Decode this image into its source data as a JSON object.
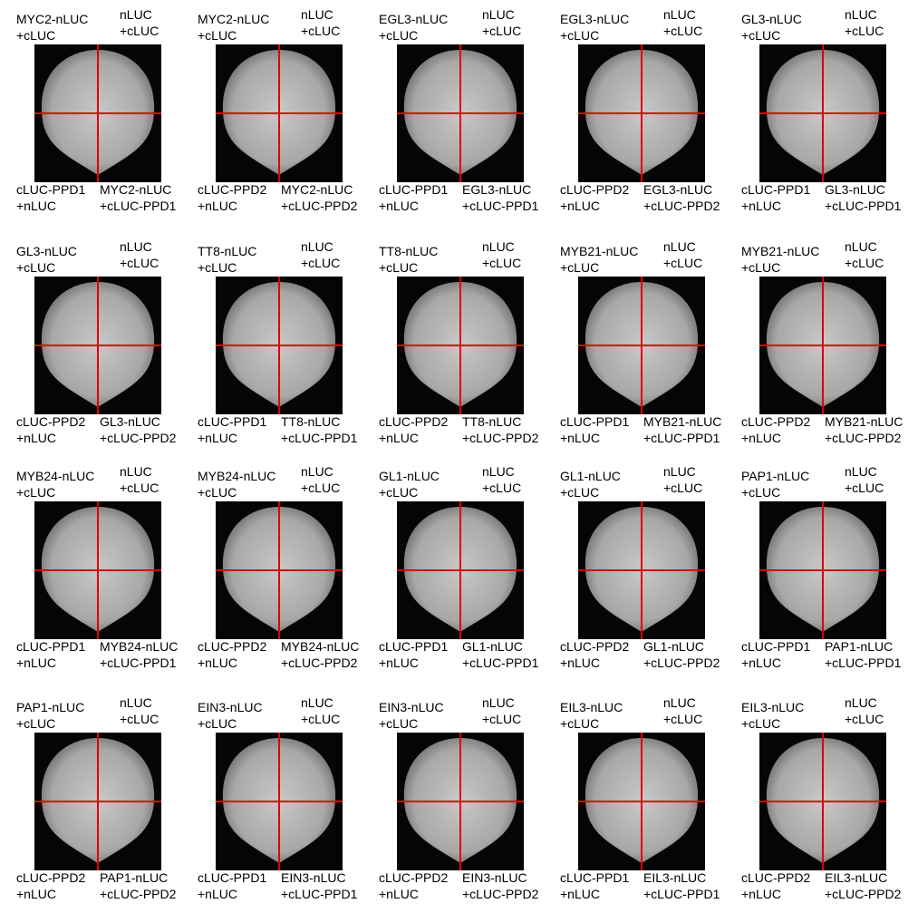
{
  "panels": [
    {
      "top_left": [
        "MYC2-nLUC",
        "+cLUC"
      ],
      "top_right": [
        "nLUC",
        "+cLUC"
      ],
      "bottom_left": [
        "cLUC-PPD1",
        "+nLUC"
      ],
      "bottom_right": [
        "MYC2-nLUC",
        "+cLUC-PPD1"
      ]
    },
    {
      "top_left": [
        "MYC2-nLUC",
        "+cLUC"
      ],
      "top_right": [
        "nLUC",
        "+cLUC"
      ],
      "bottom_left": [
        "cLUC-PPD2",
        "+nLUC"
      ],
      "bottom_right": [
        "MYC2-nLUC",
        "+cLUC-PPD2"
      ]
    },
    {
      "top_left": [
        "EGL3-nLUC",
        "+cLUC"
      ],
      "top_right": [
        "nLUC",
        "+cLUC"
      ],
      "bottom_left": [
        "cLUC-PPD1",
        "+nLUC"
      ],
      "bottom_right": [
        "EGL3-nLUC",
        "+cLUC-PPD1"
      ]
    },
    {
      "top_left": [
        "EGL3-nLUC",
        "+cLUC"
      ],
      "top_right": [
        "nLUC",
        "+cLUC"
      ],
      "bottom_left": [
        "cLUC-PPD2",
        "+nLUC"
      ],
      "bottom_right": [
        "EGL3-nLUC",
        "+cLUC-PPD2"
      ]
    },
    {
      "top_left": [
        "GL3-nLUC",
        "+cLUC"
      ],
      "top_right": [
        "nLUC",
        "+cLUC"
      ],
      "bottom_left": [
        "cLUC-PPD1",
        "+nLUC"
      ],
      "bottom_right": [
        "GL3-nLUC",
        "+cLUC-PPD1"
      ]
    },
    {
      "top_left": [
        "GL3-nLUC",
        "+cLUC"
      ],
      "top_right": [
        "nLUC",
        "+cLUC"
      ],
      "bottom_left": [
        "cLUC-PPD2",
        "+nLUC"
      ],
      "bottom_right": [
        "GL3-nLUC",
        "+cLUC-PPD2"
      ]
    },
    {
      "top_left": [
        "TT8-nLUC",
        "+cLUC"
      ],
      "top_right": [
        "nLUC",
        "+cLUC"
      ],
      "bottom_left": [
        "cLUC-PPD1",
        "+nLUC"
      ],
      "bottom_right": [
        "TT8-nLUC",
        "+cLUC-PPD1"
      ]
    },
    {
      "top_left": [
        "TT8-nLUC",
        "+cLUC"
      ],
      "top_right": [
        "nLUC",
        "+cLUC"
      ],
      "bottom_left": [
        "cLUC-PPD2",
        "+nLUC"
      ],
      "bottom_right": [
        "TT8-nLUC",
        "+cLUC-PPD2"
      ]
    },
    {
      "top_left": [
        "MYB21-nLUC",
        "+cLUC"
      ],
      "top_right": [
        "nLUC",
        "+cLUC"
      ],
      "bottom_left": [
        "cLUC-PPD1",
        "+nLUC"
      ],
      "bottom_right": [
        "MYB21-nLUC",
        "+cLUC-PPD1"
      ]
    },
    {
      "top_left": [
        "MYB21-nLUC",
        "+cLUC"
      ],
      "top_right": [
        "nLUC",
        "+cLUC"
      ],
      "bottom_left": [
        "cLUC-PPD2",
        "+nLUC"
      ],
      "bottom_right": [
        "MYB21-nLUC",
        "+cLUC-PPD2"
      ]
    },
    {
      "top_left": [
        "MYB24-nLUC",
        "+cLUC"
      ],
      "top_right": [
        "nLUC",
        "+cLUC"
      ],
      "bottom_left": [
        "cLUC-PPD1",
        "+nLUC"
      ],
      "bottom_right": [
        "MYB24-nLUC",
        "+cLUC-PPD1"
      ]
    },
    {
      "top_left": [
        "MYB24-nLUC",
        "+cLUC"
      ],
      "top_right": [
        "nLUC",
        "+cLUC"
      ],
      "bottom_left": [
        "cLUC-PPD2",
        "+nLUC"
      ],
      "bottom_right": [
        "MYB24-nLUC",
        "+cLUC-PPD2"
      ]
    },
    {
      "top_left": [
        "GL1-nLUC",
        "+cLUC"
      ],
      "top_right": [
        "nLUC",
        "+cLUC"
      ],
      "bottom_left": [
        "cLUC-PPD1",
        "+nLUC"
      ],
      "bottom_right": [
        "GL1-nLUC",
        "+cLUC-PPD1"
      ]
    },
    {
      "top_left": [
        "GL1-nLUC",
        "+cLUC"
      ],
      "top_right": [
        "nLUC",
        "+cLUC"
      ],
      "bottom_left": [
        "cLUC-PPD2",
        "+nLUC"
      ],
      "bottom_right": [
        "GL1-nLUC",
        "+cLUC-PPD2"
      ]
    },
    {
      "top_left": [
        "PAP1-nLUC",
        "+cLUC"
      ],
      "top_right": [
        "nLUC",
        "+cLUC"
      ],
      "bottom_left": [
        "cLUC-PPD1",
        "+nLUC"
      ],
      "bottom_right": [
        "PAP1-nLUC",
        "+cLUC-PPD1"
      ]
    },
    {
      "top_left": [
        "PAP1-nLUC",
        "+cLUC"
      ],
      "top_right": [
        "nLUC",
        "+cLUC"
      ],
      "bottom_left": [
        "cLUC-PPD2",
        "+nLUC"
      ],
      "bottom_right": [
        "PAP1-nLUC",
        "+cLUC-PPD2"
      ]
    },
    {
      "top_left": [
        "EIN3-nLUC",
        "+cLUC"
      ],
      "top_right": [
        "nLUC",
        "+cLUC"
      ],
      "bottom_left": [
        "cLUC-PPD1",
        "+nLUC"
      ],
      "bottom_right": [
        "EIN3-nLUC",
        "+cLUC-PPD1"
      ]
    },
    {
      "top_left": [
        "EIN3-nLUC",
        "+cLUC"
      ],
      "top_right": [
        "nLUC",
        "+cLUC"
      ],
      "bottom_left": [
        "cLUC-PPD2",
        "+nLUC"
      ],
      "bottom_right": [
        "EIN3-nLUC",
        "+cLUC-PPD2"
      ]
    },
    {
      "top_left": [
        "EIL3-nLUC",
        "+cLUC"
      ],
      "top_right": [
        "nLUC",
        "+cLUC"
      ],
      "bottom_left": [
        "cLUC-PPD1",
        "+nLUC"
      ],
      "bottom_right": [
        "EIL3-nLUC",
        "+cLUC-PPD1"
      ]
    },
    {
      "top_left": [
        "EIL3-nLUC",
        "+cLUC"
      ],
      "top_right": [
        "nLUC",
        "+cLUC"
      ],
      "bottom_left": [
        "cLUC-PPD2",
        "+nLUC"
      ],
      "bottom_right": [
        "EIL3-nLUC",
        "+cLUC-PPD2"
      ]
    }
  ]
}
